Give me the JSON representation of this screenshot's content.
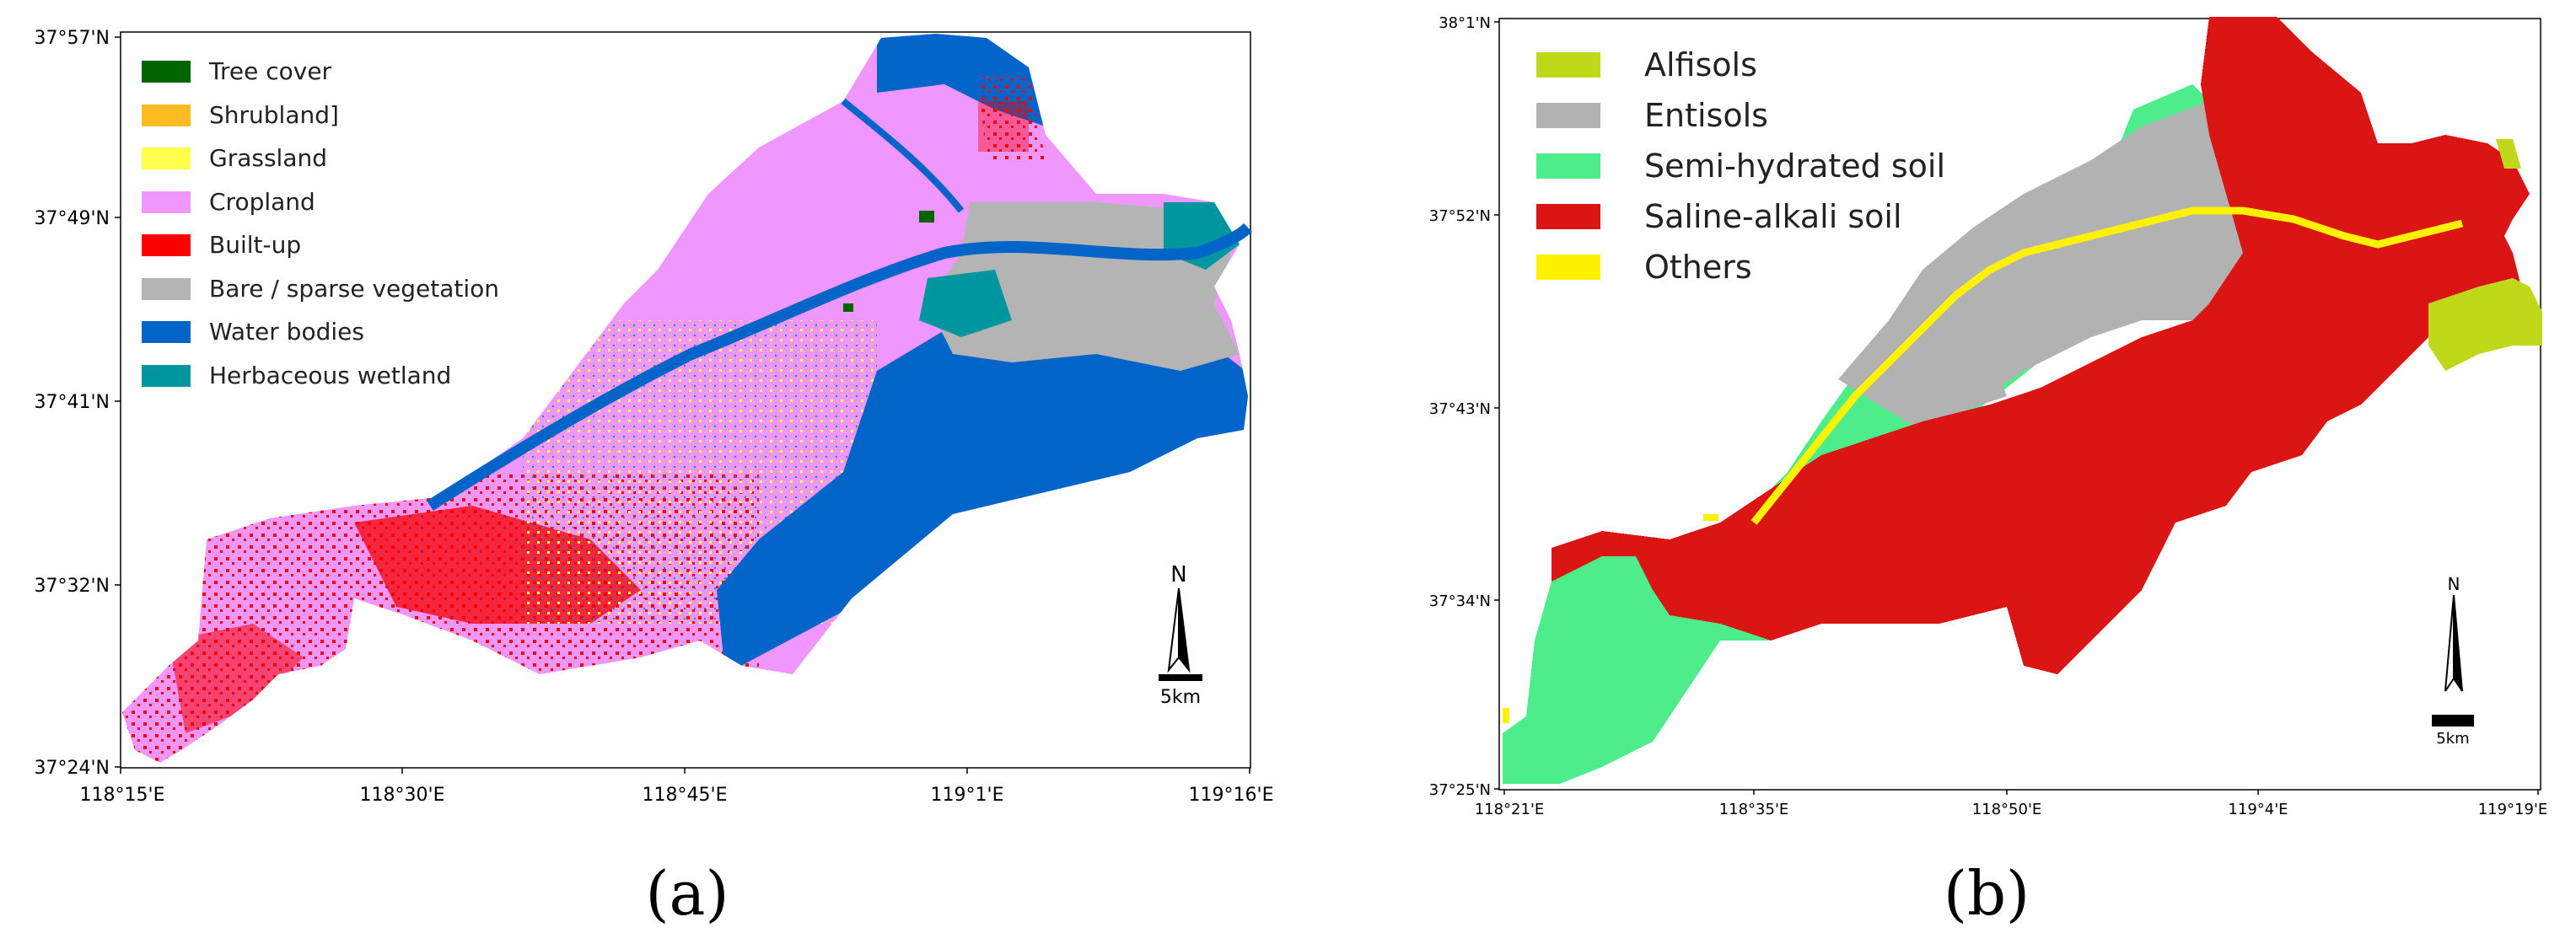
{
  "panel_a": {
    "caption": "(a)",
    "lat_labels": [
      "37°57'N",
      "37°49'N",
      "37°41'N",
      "37°32'N",
      "37°24'N"
    ],
    "lon_labels": [
      "118°15'E",
      "118°30'E",
      "118°45'E",
      "119°1'E",
      "119°16'E"
    ],
    "legend": [
      {
        "label": "Tree cover",
        "color": "#006400"
      },
      {
        "label": "Shrubland]",
        "color": "#FFBB22"
      },
      {
        "label": "Grassland",
        "color": "#FFFF4C"
      },
      {
        "label": "Cropland",
        "color": "#F096FF"
      },
      {
        "label": "Built-up",
        "color": "#FA0000"
      },
      {
        "label": "Bare / sparse vegetation",
        "color": "#B4B4B4"
      },
      {
        "label": "Water bodies",
        "color": "#0064C8"
      },
      {
        "label": "Herbaceous wetland",
        "color": "#0096A0"
      }
    ],
    "north_label": "N",
    "scale_label": "5km"
  },
  "panel_b": {
    "caption": "(b)",
    "lat_labels": [
      "38°1'N",
      "37°52'N",
      "37°43'N",
      "37°34'N",
      "37°25'N"
    ],
    "lon_labels": [
      "118°21'E",
      "118°35'E",
      "118°50'E",
      "119°4'E",
      "119°19'E"
    ],
    "legend": [
      {
        "label": "Alfisols",
        "color": "#BFD91A"
      },
      {
        "label": "Entisols",
        "color": "#B2B2B2"
      },
      {
        "label": "Semi-hydrated soil",
        "color": "#4DED8C"
      },
      {
        "label": "Saline-alkali soil",
        "color": "#DB1414"
      },
      {
        "label": "Others",
        "color": "#FFF200"
      }
    ],
    "north_label": "N",
    "scale_label": "5km"
  }
}
